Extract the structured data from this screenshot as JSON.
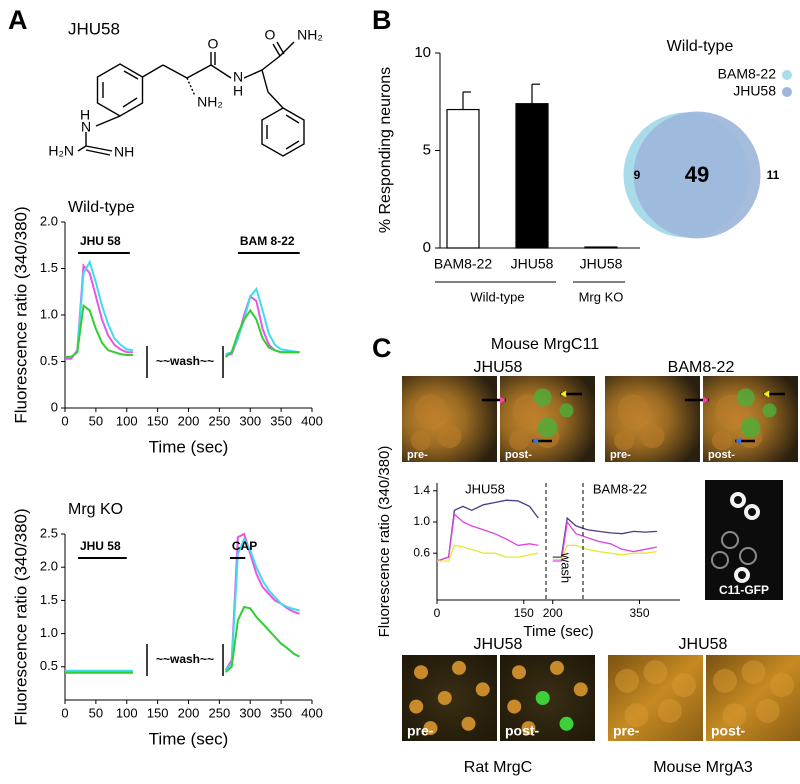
{
  "panel_labels": [
    "A",
    "B",
    "C"
  ],
  "structure": {
    "name": "JHU58",
    "atoms": [
      "O",
      "NH₂",
      "N",
      "H",
      "O",
      "NH₂",
      "H",
      "N",
      "H₂N",
      "NH"
    ]
  },
  "chart_data": [
    {
      "type": "line",
      "title": "Wild-type",
      "y_label": "Fluorescence ratio (340/380)",
      "x_label": "Time (sec)",
      "xlim": [
        0,
        400
      ],
      "xticks": [
        0,
        50,
        100,
        150,
        200,
        250,
        300,
        350,
        400
      ],
      "ylim": [
        0,
        2
      ],
      "yticks": [
        0,
        0.5,
        {
          "value": 1,
          "label": "1.0"
        },
        1.5,
        {
          "value": 2,
          "label": "2.0"
        }
      ],
      "stimuli": [
        {
          "label": "JHU 58",
          "start": 21,
          "end": 105
        },
        {
          "label": "BAM 8-22",
          "start": 280,
          "end": 380
        }
      ],
      "annotations": [
        "~~wash~~"
      ],
      "x": [
        0,
        10,
        20,
        30,
        40,
        50,
        60,
        70,
        80,
        90,
        100,
        110,
        120,
        260,
        270,
        280,
        290,
        300,
        310,
        320,
        330,
        340,
        350,
        360,
        370,
        380
      ],
      "series": [
        {
          "color": "#e855e8",
          "values": [
            0.53,
            0.53,
            0.62,
            1.53,
            1.45,
            1.2,
            0.95,
            0.78,
            0.68,
            0.63,
            0.6,
            0.6,
            null,
            0.57,
            0.58,
            0.75,
            1.0,
            1.2,
            1.15,
            0.85,
            0.68,
            0.62,
            0.6,
            0.6,
            0.6,
            0.6
          ]
        },
        {
          "color": "#3fdcec",
          "values": [
            0.55,
            0.55,
            0.6,
            1.45,
            1.57,
            1.35,
            1.1,
            0.9,
            0.75,
            0.68,
            0.63,
            0.62,
            null,
            0.58,
            0.6,
            0.75,
            0.95,
            1.2,
            1.28,
            1.05,
            0.8,
            0.68,
            0.63,
            0.62,
            0.61,
            0.6
          ]
        },
        {
          "color": "#33cc33",
          "values": [
            0.55,
            0.55,
            0.6,
            1.1,
            1.05,
            0.85,
            0.7,
            0.62,
            0.6,
            0.58,
            0.57,
            0.57,
            null,
            0.55,
            0.6,
            0.8,
            0.95,
            1.05,
            0.95,
            0.75,
            0.65,
            0.62,
            0.6,
            0.6,
            0.6,
            0.6
          ]
        }
      ]
    },
    {
      "type": "line",
      "title": "Mrg KO",
      "y_label": "Fluorescence ratio (340/380)",
      "x_label": "Time (sec)",
      "xlim": [
        0,
        400
      ],
      "xticks": [
        0,
        50,
        100,
        150,
        200,
        250,
        300,
        350,
        400
      ],
      "ylim": [
        0,
        2.5
      ],
      "yticks": [
        0.5,
        {
          "value": 1,
          "label": "1.0"
        },
        1.5,
        {
          "value": 2,
          "label": "2.0"
        },
        2.5
      ],
      "stimuli": [
        {
          "label": "JHU 58",
          "start": 21,
          "end": 100
        },
        {
          "label": "CAP",
          "start": 267,
          "end": 292
        }
      ],
      "annotations": [
        "~~wash~~"
      ],
      "x": [
        0,
        10,
        20,
        30,
        40,
        50,
        60,
        70,
        80,
        90,
        100,
        110,
        120,
        260,
        270,
        280,
        290,
        300,
        310,
        320,
        330,
        340,
        350,
        360,
        370,
        380
      ],
      "series": [
        {
          "color": "#e855e8",
          "values": [
            0.42,
            0.42,
            0.42,
            0.42,
            0.42,
            0.42,
            0.42,
            0.42,
            0.42,
            0.42,
            0.42,
            0.42,
            null,
            0.45,
            0.6,
            2.45,
            2.5,
            2.2,
            1.9,
            1.7,
            1.6,
            1.5,
            1.45,
            1.38,
            1.33,
            1.3
          ]
        },
        {
          "color": "#3fdcec",
          "values": [
            0.44,
            0.44,
            0.44,
            0.44,
            0.44,
            0.44,
            0.44,
            0.44,
            0.44,
            0.44,
            0.44,
            0.44,
            null,
            0.45,
            0.55,
            2.2,
            2.42,
            2.25,
            2.0,
            1.8,
            1.65,
            1.55,
            1.45,
            1.4,
            1.37,
            1.35
          ]
        },
        {
          "color": "#33cc33",
          "values": [
            0.41,
            0.41,
            0.41,
            0.41,
            0.41,
            0.41,
            0.41,
            0.41,
            0.41,
            0.41,
            0.41,
            0.41,
            null,
            0.42,
            0.5,
            1.2,
            1.4,
            1.38,
            1.25,
            1.15,
            1.05,
            0.95,
            0.85,
            0.78,
            0.7,
            0.65
          ]
        }
      ]
    },
    {
      "type": "bar",
      "y_label": "% Responding neurons",
      "ylim": [
        0,
        10
      ],
      "yticks": [
        0,
        5,
        10
      ],
      "groups": [
        {
          "name": "Wild-type",
          "categories": [
            "BAM8-22",
            "JHU58"
          ],
          "values": [
            7.1,
            7.4
          ],
          "errors": [
            0.9,
            1.0
          ],
          "colors": [
            "#ffffff",
            "#000000"
          ]
        },
        {
          "name": "Mrg KO",
          "categories": [
            "JHU58"
          ],
          "values": [
            0.05
          ],
          "errors": [
            null
          ],
          "colors": [
            "#000000"
          ]
        }
      ]
    },
    {
      "type": "venn",
      "title": "Wild-type",
      "sets": [
        {
          "name": "BAM8-22",
          "color": "#a9dcea",
          "only": 9
        },
        {
          "name": "JHU58",
          "color": "#9db6da",
          "only": 11
        }
      ],
      "overlap": 49
    },
    {
      "type": "line",
      "y_label": "Fluorescence ratio (340/380)",
      "x_label": "Time (sec)",
      "xlim": [
        0,
        420
      ],
      "xticks": [
        0,
        150,
        200,
        350
      ],
      "ylim": [
        0,
        1.5
      ],
      "yticks": [
        0.6,
        {
          "value": 1,
          "label": "1.0"
        },
        1.4
      ],
      "annotations": [
        "JHU58",
        "BAM8-22",
        "wash"
      ],
      "x": [
        0,
        20,
        30,
        45,
        60,
        80,
        100,
        120,
        140,
        160,
        175,
        185,
        200,
        215,
        225,
        240,
        260,
        280,
        300,
        320,
        340,
        360,
        380
      ],
      "series": [
        {
          "color": "#4a3a8c",
          "values": [
            0.5,
            0.55,
            1.15,
            1.2,
            1.15,
            1.22,
            1.25,
            1.28,
            1.27,
            1.2,
            1.05,
            null,
            0.55,
            0.55,
            1.05,
            0.95,
            0.9,
            0.88,
            0.86,
            0.85,
            0.88,
            0.87,
            0.88
          ]
        },
        {
          "color": "#dd44dd",
          "values": [
            0.5,
            0.55,
            1.1,
            1.0,
            0.95,
            0.9,
            0.85,
            0.78,
            0.7,
            0.72,
            0.7,
            null,
            0.5,
            0.5,
            1.0,
            0.85,
            0.8,
            0.75,
            0.72,
            0.65,
            0.62,
            0.65,
            0.68
          ]
        },
        {
          "color": "#e6e63a",
          "values": [
            0.5,
            0.5,
            0.7,
            0.68,
            0.65,
            0.6,
            0.6,
            0.55,
            0.55,
            0.58,
            0.6,
            null,
            0.52,
            0.52,
            0.7,
            0.7,
            0.65,
            0.62,
            0.6,
            0.58,
            0.6,
            0.6,
            0.62
          ]
        }
      ]
    }
  ],
  "images": {
    "title": "Mouse MrgC11",
    "top": [
      {
        "label": "JHU58",
        "pre": "pre-",
        "post": "post-"
      },
      {
        "label": "BAM8-22",
        "pre": "pre-",
        "post": "post-"
      }
    ],
    "gfp": "C11-GFP",
    "bottom": [
      {
        "label": "JHU58",
        "pre": "pre-",
        "post": "post-",
        "caption": "Rat MrgC"
      },
      {
        "label": "JHU58",
        "pre": "pre-",
        "post": "post-",
        "caption": "Mouse MrgA3"
      }
    ]
  }
}
